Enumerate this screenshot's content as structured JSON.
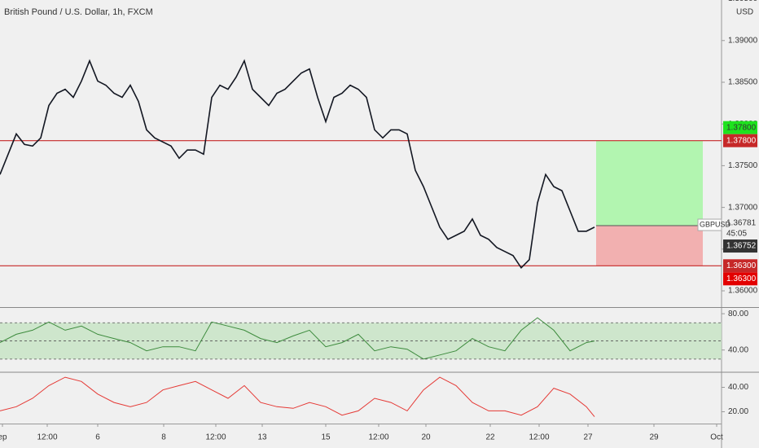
{
  "header": {
    "title": "British Pound / U.S. Dollar, 1h, FXCM",
    "currency": "USD"
  },
  "x_axis": {
    "xlim": [
      0,
      88.6
    ],
    "xticks": [
      {
        "value": 0.3,
        "label": "ep"
      },
      {
        "value": 5.8,
        "label": "12:00"
      },
      {
        "value": 12,
        "label": "6"
      },
      {
        "value": 20.1,
        "label": "8"
      },
      {
        "value": 26.5,
        "label": "12:00"
      },
      {
        "value": 32.2,
        "label": "13"
      },
      {
        "value": 40,
        "label": "15"
      },
      {
        "value": 46.5,
        "label": "12:00"
      },
      {
        "value": 52.3,
        "label": "20"
      },
      {
        "value": 60.2,
        "label": "22"
      },
      {
        "value": 66.2,
        "label": "12:00"
      },
      {
        "value": 72.2,
        "label": "27"
      },
      {
        "value": 80.3,
        "label": "29"
      },
      {
        "value": 88,
        "label": "Oct"
      }
    ]
  },
  "chart_data": [
    {
      "type": "line",
      "symbol": "GBPUSD",
      "countdown": "45:05",
      "ylim": [
        1.35805,
        1.39486
      ],
      "yticks": [
        {
          "value": 1.36,
          "label": "1.36000"
        },
        {
          "value": 1.365,
          "label": "1.36500"
        },
        {
          "value": 1.37,
          "label": "1.37000"
        },
        {
          "value": 1.375,
          "label": "1.37500"
        },
        {
          "value": 1.38,
          "label": "1.38000"
        },
        {
          "value": 1.385,
          "label": "1.38500"
        },
        {
          "value": 1.39,
          "label": "1.39000"
        },
        {
          "value": 1.395,
          "label": "1.39500"
        }
      ],
      "series": [
        {
          "name": "GBPUSD",
          "color": "#131722",
          "x": [
            0,
            1,
            2,
            3,
            4,
            5,
            6,
            7,
            8,
            9,
            10,
            11,
            12,
            13,
            14,
            15,
            16,
            17,
            18,
            19,
            20,
            21,
            22,
            23,
            24,
            25,
            26,
            27,
            28,
            29,
            30,
            31,
            32,
            33,
            34,
            35,
            36,
            37,
            38,
            39,
            40,
            41,
            42,
            43,
            44,
            45,
            46,
            47,
            48,
            49,
            50,
            51,
            52,
            53,
            54,
            55,
            56,
            57,
            58,
            59,
            60,
            61,
            62,
            63,
            64,
            65,
            66,
            67,
            68,
            69,
            70,
            71,
            72,
            73
          ],
          "values": [
            1.37395,
            1.37638,
            1.37881,
            1.37755,
            1.37735,
            1.37833,
            1.38222,
            1.38368,
            1.38416,
            1.38319,
            1.38514,
            1.38757,
            1.38514,
            1.38465,
            1.38368,
            1.38319,
            1.38465,
            1.3827,
            1.3793,
            1.37833,
            1.37784,
            1.37735,
            1.37589,
            1.37687,
            1.37687,
            1.37638,
            1.38319,
            1.38465,
            1.38416,
            1.38562,
            1.38757,
            1.38416,
            1.38319,
            1.38222,
            1.38368,
            1.38416,
            1.38514,
            1.38611,
            1.3866,
            1.38319,
            1.38027,
            1.38319,
            1.38368,
            1.38465,
            1.38416,
            1.38319,
            1.3793,
            1.37833,
            1.3793,
            1.3793,
            1.37881,
            1.37444,
            1.37249,
            1.37006,
            1.36763,
            1.36617,
            1.36665,
            1.36714,
            1.3686,
            1.36665,
            1.36617,
            1.3652,
            1.36471,
            1.36422,
            1.36276,
            1.36374,
            1.37054,
            1.37395,
            1.37249,
            1.372,
            1.36957,
            1.36714,
            1.36714,
            1.36763
          ]
        }
      ],
      "levels": [
        {
          "value": 1.378,
          "label": "1.37800",
          "color": "#c62828"
        },
        {
          "value": 1.363,
          "label": "1.36300",
          "color": "#c62828"
        }
      ],
      "position": {
        "x": [
          73.2,
          86.3
        ],
        "entry": {
          "value": 1.36781,
          "label": "1.36781"
        },
        "target": {
          "value": 1.378,
          "label": "1.37800"
        },
        "stop": {
          "value": 1.363,
          "label": "1.36300"
        },
        "profit_color": "#b2f5b0",
        "loss_color": "#f2b0b0"
      },
      "last_price": {
        "value": 1.36752,
        "label": "1.36752"
      }
    },
    {
      "type": "line",
      "ylim": [
        16.4,
        86.4
      ],
      "yticks": [
        {
          "value": 80,
          "label": "80.00"
        },
        {
          "value": 40,
          "label": "40.00"
        }
      ],
      "bands": [
        70,
        50,
        30
      ],
      "band_color": "#c5e3c3",
      "series": [
        {
          "name": "RSI",
          "color": "#3d8b3d",
          "x": [
            0,
            2,
            4,
            6,
            8,
            10,
            12,
            14,
            16,
            18,
            20,
            22,
            24,
            26,
            28,
            30,
            32,
            34,
            36,
            38,
            40,
            42,
            44,
            46,
            48,
            50,
            52,
            54,
            56,
            58,
            60,
            62,
            64,
            66,
            68,
            70,
            72,
            73
          ],
          "values": [
            48.2,
            57.3,
            61.8,
            70.9,
            61.8,
            66.4,
            57.3,
            52.7,
            48.2,
            39.1,
            43.6,
            43.6,
            39.1,
            70.9,
            66.4,
            61.8,
            52.7,
            48.2,
            55.5,
            61.8,
            43.6,
            48.2,
            57.3,
            39.1,
            43.6,
            40.9,
            30,
            34.5,
            39.1,
            52.7,
            43.6,
            39.1,
            61.8,
            75.5,
            61.8,
            39.1,
            48.2,
            50
          ]
        }
      ]
    },
    {
      "type": "line",
      "ylim": [
        10.3,
        51.7
      ],
      "yticks": [
        {
          "value": 40,
          "label": "40.00"
        },
        {
          "value": 20,
          "label": "20.00"
        }
      ],
      "series": [
        {
          "name": "Indicator",
          "color": "#e53935",
          "x": [
            0,
            2,
            4,
            6,
            8,
            10,
            12,
            14,
            16,
            18,
            20,
            22,
            24,
            26,
            28,
            30,
            32,
            34,
            36,
            38,
            40,
            42,
            44,
            46,
            48,
            50,
            52,
            54,
            56,
            58,
            60,
            62,
            64,
            66,
            68,
            70,
            72,
            73
          ],
          "values": [
            20.7,
            24.1,
            31,
            41.4,
            48.3,
            44.8,
            34.5,
            27.6,
            24.1,
            27.6,
            37.9,
            41.4,
            44.8,
            37.9,
            31,
            41.4,
            27.6,
            24.1,
            22.8,
            27.6,
            24.1,
            17.2,
            20.7,
            31,
            27.6,
            20.7,
            37.9,
            48.3,
            41.4,
            27.6,
            20.7,
            20.7,
            17.2,
            24.1,
            39.3,
            34.5,
            24.1,
            15.9
          ]
        }
      ]
    }
  ]
}
